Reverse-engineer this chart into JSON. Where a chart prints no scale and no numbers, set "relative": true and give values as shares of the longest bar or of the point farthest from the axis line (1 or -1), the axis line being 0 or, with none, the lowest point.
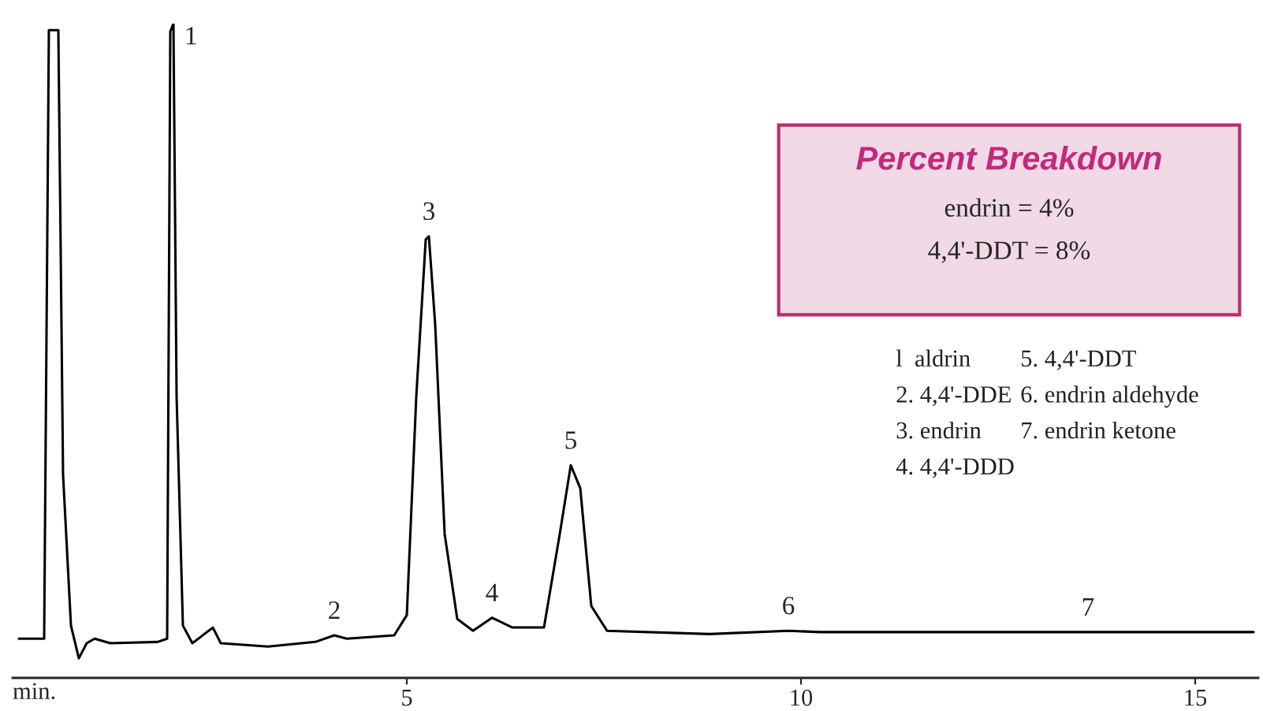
{
  "chart_data": {
    "type": "line",
    "relative": true,
    "title": "Percent Breakdown",
    "xlabel": "min.",
    "x": [
      0.08,
      0.4,
      0.46,
      0.58,
      0.64,
      0.74,
      0.84,
      0.94,
      1.04,
      1.24,
      1.84,
      1.96,
      2.0,
      2.04,
      2.08,
      2.16,
      2.28,
      2.54,
      2.64,
      3.24,
      3.84,
      4.08,
      4.24,
      4.84,
      5.0,
      5.12,
      5.24,
      5.28,
      5.36,
      5.48,
      5.64,
      5.84,
      6.08,
      6.34,
      6.74,
      6.94,
      7.08,
      7.2,
      7.34,
      7.54,
      8.84,
      9.84,
      10.24,
      11.84,
      13.64,
      15.74
    ],
    "series": [
      {
        "color": "#000000",
        "values": [
          0.06,
          0.06,
          0.99,
          0.99,
          0.31,
          0.08,
          0.03,
          0.053,
          0.06,
          0.053,
          0.055,
          0.06,
          0.988,
          1.0,
          0.43,
          0.08,
          0.053,
          0.077,
          0.053,
          0.048,
          0.055,
          0.065,
          0.06,
          0.065,
          0.096,
          0.43,
          0.67,
          0.675,
          0.54,
          0.22,
          0.09,
          0.072,
          0.092,
          0.077,
          0.077,
          0.22,
          0.325,
          0.29,
          0.11,
          0.072,
          0.067,
          0.072,
          0.07,
          0.07,
          0.07,
          0.07
        ]
      }
    ],
    "xlim": [
      0,
      15.8
    ],
    "xticks": [
      5,
      10,
      15
    ],
    "grid": false,
    "legend": false,
    "marker": "none",
    "line_style": "solid",
    "annotations": [
      {
        "text": "1",
        "x": 2.04,
        "y": 1.0
      },
      {
        "text": "2",
        "x": 4.08,
        "y": 0.065
      },
      {
        "text": "3",
        "x": 5.28,
        "y": 0.675
      },
      {
        "text": "4",
        "x": 6.08,
        "y": 0.092
      },
      {
        "text": "5",
        "x": 7.08,
        "y": 0.325
      },
      {
        "text": "6",
        "x": 9.84,
        "y": 0.072
      },
      {
        "text": "7",
        "x": 13.64,
        "y": 0.07
      },
      "endrin = 4%",
      "4,4'-DDT = 8%",
      "l  aldrin",
      "2. 4,4'-DDE",
      "3. endrin",
      "4. 4,4'-DDD",
      "5. 4,4'-DDT",
      "6. endrin aldehyde",
      "7. endrin ketone"
    ]
  }
}
